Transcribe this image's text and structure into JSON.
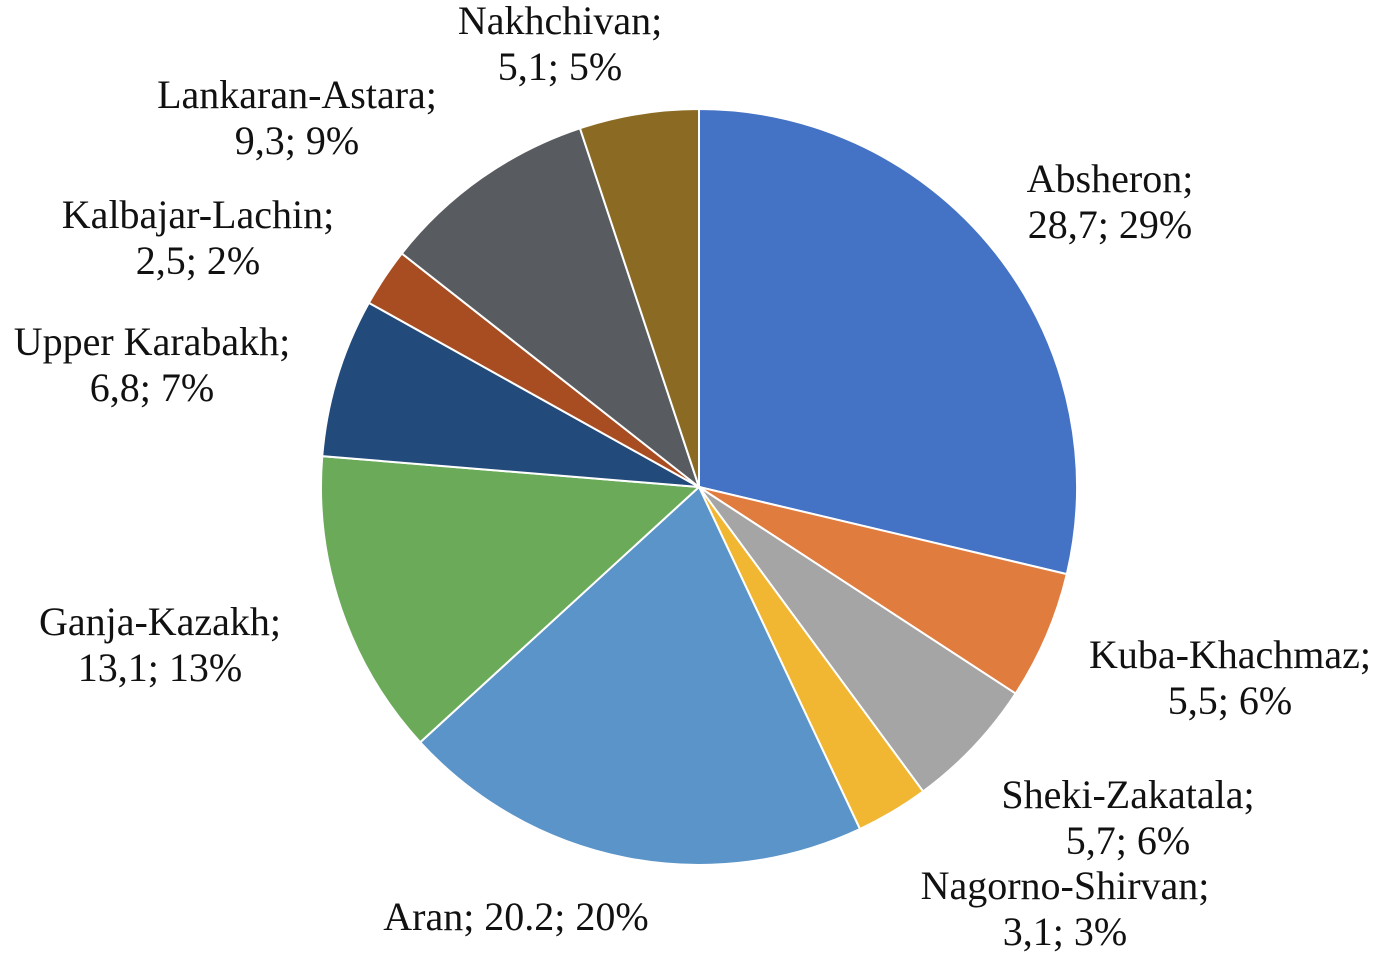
{
  "chart_data": {
    "type": "pie",
    "title": "",
    "start_angle_deg": 0,
    "direction": "clockwise",
    "slices": [
      {
        "name": "Absheron",
        "value": 28.7,
        "percent": "29%",
        "value_label": "28,7",
        "color": "#4472c4"
      },
      {
        "name": "Kuba-Khachmaz",
        "value": 5.5,
        "percent": "6%",
        "value_label": "5,5",
        "color": "#e07c3e"
      },
      {
        "name": "Sheki-Zakatala",
        "value": 5.7,
        "percent": "6%",
        "value_label": "5,7",
        "color": "#a5a5a5"
      },
      {
        "name": "Nagorno-Shirvan",
        "value": 3.1,
        "percent": "3%",
        "value_label": "3,1",
        "color": "#f1b733"
      },
      {
        "name": "Aran",
        "value": 20.2,
        "percent": "20%",
        "value_label": "20.2",
        "color": "#5a94c8"
      },
      {
        "name": "Ganja-Kazakh",
        "value": 13.1,
        "percent": "13%",
        "value_label": "13,1",
        "color": "#6aaa58"
      },
      {
        "name": "Upper Karabakh",
        "value": 6.8,
        "percent": "7%",
        "value_label": "6,8",
        "color": "#224a7a"
      },
      {
        "name": "Kalbajar-Lachin",
        "value": 2.5,
        "percent": "2%",
        "value_label": "2,5",
        "color": "#a84d22"
      },
      {
        "name": "Lankaran-Astara",
        "value": 9.3,
        "percent": "9%",
        "value_label": "9,3",
        "color": "#585c60"
      },
      {
        "name": "Nakhchivan",
        "value": 5.1,
        "percent": "5%",
        "value_label": "5,1",
        "color": "#8b6b24"
      }
    ],
    "labels": [
      {
        "lines": [
          "Absheron;",
          "28,7; 29%"
        ]
      },
      {
        "lines": [
          "Kuba-Khachmaz;",
          "5,5; 6%"
        ]
      },
      {
        "lines": [
          "Sheki-Zakatala;",
          "5,7; 6%"
        ]
      },
      {
        "lines": [
          "Nagorno-Shirvan;",
          "3,1; 3%"
        ]
      },
      {
        "lines": [
          "Aran; 20.2; 20%"
        ]
      },
      {
        "lines": [
          "Ganja-Kazakh;",
          "13,1; 13%"
        ]
      },
      {
        "lines": [
          "Upper Karabakh;",
          "6,8; 7%"
        ]
      },
      {
        "lines": [
          "Kalbajar-Lachin;",
          "2,5; 2%"
        ]
      },
      {
        "lines": [
          "Lankaran-Astara;",
          "9,3; 9%"
        ]
      },
      {
        "lines": [
          "Nakhchivan;",
          "5,1; 5%"
        ]
      }
    ]
  }
}
